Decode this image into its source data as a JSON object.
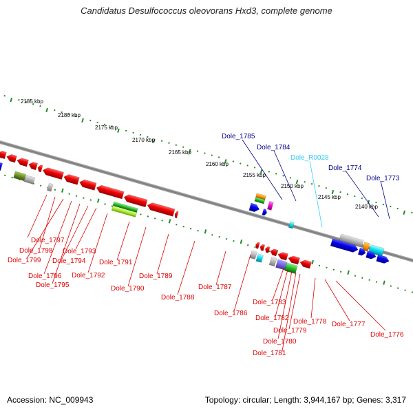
{
  "title": "Candidatus Desulfococcus oleovorans Hxd3, complete genome",
  "footer": {
    "accession": "Accession: NC_009943",
    "summary": "Topology: circular; Length: 3,944,167 bp; Genes: 3,317"
  },
  "colors": {
    "backbone": "#808080",
    "ruler": "#228b22",
    "label_forward": "#00008b",
    "label_reverse": "#dd0000",
    "label_rna": "#33ccff"
  },
  "scale_ticks": [
    "2185 kbp",
    "2180 kbp",
    "2175 kbp",
    "2170 kbp",
    "2165 kbp",
    "2160 kbp",
    "2155 kbp",
    "2150 kbp",
    "2145 kbp",
    "2140 kbp"
  ],
  "gene_labels": {
    "forward": [
      "Dole_1785",
      "Dole_1784",
      "Dole_R0028",
      "Dole_1774",
      "Dole_1773"
    ],
    "reverse": [
      "Dole_1797",
      "Dole_1798",
      "Dole_1799",
      "Dole_1793",
      "Dole_1794",
      "Dole_1796",
      "Dole_1795",
      "Dole_1791",
      "Dole_1792",
      "Dole_1790",
      "Dole_1789",
      "Dole_1788",
      "Dole_1787",
      "Dole_1786",
      "Dole_1783",
      "Dole_1782",
      "Dole_1779",
      "Dole_1780",
      "Dole_1781",
      "Dole_1778",
      "Dole_1777",
      "Dole_1776"
    ]
  }
}
